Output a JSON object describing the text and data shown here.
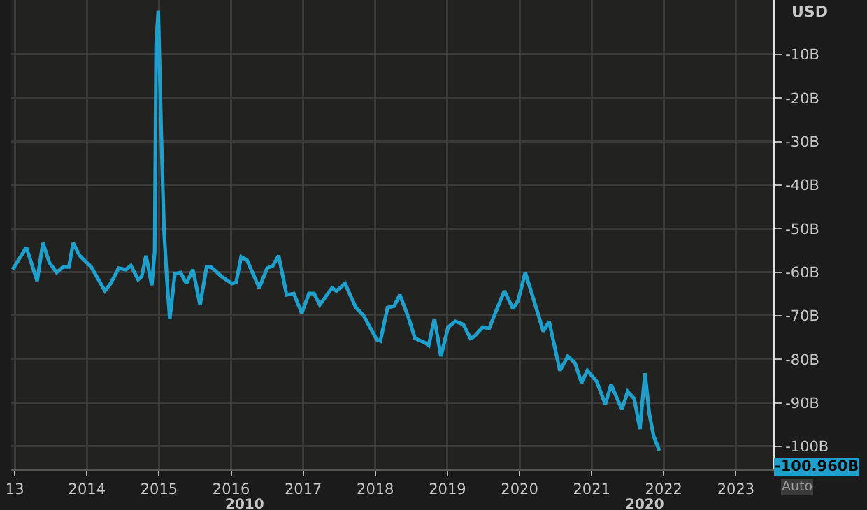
{
  "chart_data": {
    "type": "line",
    "ylabel": "USD",
    "x": [
      2012.97,
      2013.16,
      2013.31,
      2013.39,
      2013.48,
      2013.58,
      2013.67,
      2013.75,
      2013.81,
      2013.9,
      2014.06,
      2014.25,
      2014.33,
      2014.44,
      2014.54,
      2014.61,
      2014.71,
      2014.76,
      2014.82,
      2014.9,
      2014.94,
      2014.96,
      2014.99,
      2015.03,
      2015.07,
      2015.11,
      2015.15,
      2015.22,
      2015.3,
      2015.38,
      2015.47,
      2015.57,
      2015.66,
      2015.72,
      2015.87,
      2016.01,
      2016.07,
      2016.14,
      2016.22,
      2016.39,
      2016.5,
      2016.58,
      2016.66,
      2016.77,
      2016.87,
      2016.98,
      2017.08,
      2017.15,
      2017.23,
      2017.4,
      2017.46,
      2017.58,
      2017.73,
      2017.84,
      2018.02,
      2018.07,
      2018.17,
      2018.26,
      2018.34,
      2018.46,
      2018.55,
      2018.68,
      2018.74,
      2018.82,
      2018.91,
      2019.01,
      2019.11,
      2019.22,
      2019.32,
      2019.37,
      2019.49,
      2019.58,
      2019.68,
      2019.79,
      2019.91,
      2019.98,
      2020.08,
      2020.2,
      2020.33,
      2020.41,
      2020.56,
      2020.67,
      2020.77,
      2020.86,
      2020.94,
      2021.07,
      2021.19,
      2021.27,
      2021.42,
      2021.5,
      2021.59,
      2021.67,
      2021.74,
      2021.8,
      2021.86,
      2021.94
    ],
    "series": [
      {
        "color": "#1fa0cc",
        "values": [
          -59.4,
          -54.3,
          -62.0,
          -53.3,
          -57.8,
          -60.1,
          -58.8,
          -58.8,
          -53.3,
          -56.2,
          -58.8,
          -64.3,
          -62.6,
          -59.1,
          -59.4,
          -58.5,
          -61.7,
          -61.0,
          -56.2,
          -63.0,
          -55.3,
          -7.8,
          0.0,
          -27.3,
          -50.4,
          -61.7,
          -70.7,
          -60.4,
          -60.1,
          -62.6,
          -59.4,
          -67.5,
          -58.8,
          -58.8,
          -61.0,
          -62.6,
          -62.3,
          -56.5,
          -57.2,
          -63.6,
          -59.1,
          -58.5,
          -56.2,
          -65.2,
          -64.9,
          -69.4,
          -64.9,
          -64.9,
          -67.5,
          -63.6,
          -64.3,
          -62.6,
          -68.1,
          -70.0,
          -75.5,
          -75.8,
          -68.1,
          -67.8,
          -65.2,
          -70.4,
          -75.2,
          -76.1,
          -76.8,
          -70.7,
          -79.3,
          -72.6,
          -71.3,
          -72.0,
          -75.2,
          -74.8,
          -72.6,
          -72.9,
          -68.7,
          -64.3,
          -68.4,
          -66.5,
          -60.1,
          -66.5,
          -73.6,
          -71.3,
          -82.6,
          -79.3,
          -80.9,
          -85.4,
          -82.6,
          -85.1,
          -90.3,
          -85.8,
          -91.5,
          -87.4,
          -89.0,
          -96.0,
          -83.2,
          -92.5,
          -97.6,
          -100.96
        ]
      }
    ],
    "xlim": [
      2012.95,
      2023.52
    ],
    "xticks": [
      {
        "value": 2013,
        "label": "13"
      },
      2014,
      2015,
      2016,
      2017,
      2018,
      2019,
      2020,
      2021,
      2022,
      2023
    ],
    "ylim": [
      -105.3,
      2.5
    ],
    "yticks": [
      {
        "value": -10,
        "label": "-10B"
      },
      {
        "value": -20,
        "label": "-20B"
      },
      {
        "value": -30,
        "label": "-30B"
      },
      {
        "value": -40,
        "label": "-40B"
      },
      {
        "value": -50,
        "label": "-50B"
      },
      {
        "value": -60,
        "label": "-60B"
      },
      {
        "value": -70,
        "label": "-70B"
      },
      {
        "value": -80,
        "label": "-80B"
      },
      {
        "value": -90,
        "label": "-90B"
      },
      {
        "value": -100,
        "label": "-100B"
      }
    ],
    "annotations": [
      "2010",
      "2020",
      "-100.960B",
      "Auto"
    ],
    "grid": true,
    "marker": "none",
    "line_style": "solid"
  }
}
